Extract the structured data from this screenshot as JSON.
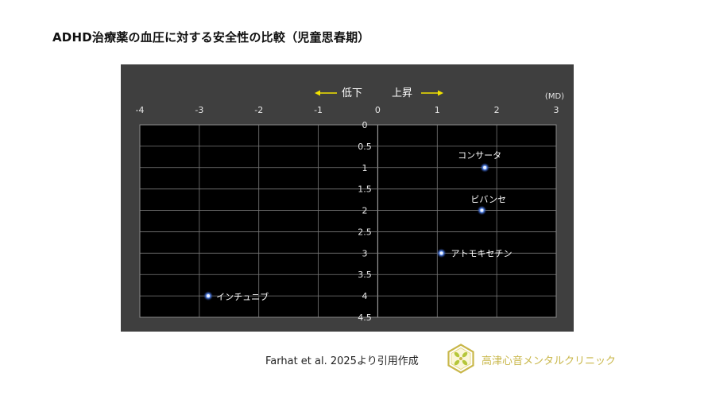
{
  "title": "ADHD治療薬の血圧に対する安全性の比較（児童思春期）",
  "citation": "Farhat et al. 2025より引用作成",
  "clinic": "高津心音メンタルクリニック",
  "colors": {
    "panel": "#3f3f3f",
    "plot": "#000000",
    "grid": "#7a7a7a",
    "arrow": "#f2e200",
    "point": "#3a6fd8",
    "clinic": "#c9b74a"
  },
  "chart_data": {
    "type": "scatter",
    "title": "",
    "xlabel": "",
    "ylabel": "",
    "unit_label": "(MD)",
    "direction_labels": {
      "left": "低下",
      "right": "上昇"
    },
    "xlim": [
      -4,
      3
    ],
    "ylim": [
      0,
      4.5
    ],
    "x_ticks": [
      "-4",
      "-3",
      "-2",
      "-1",
      "0",
      "1",
      "2",
      "3"
    ],
    "y_ticks": [
      "0",
      "0.5",
      "1",
      "1.5",
      "2",
      "2.5",
      "3",
      "3.5",
      "4",
      "4.5"
    ],
    "grid": true,
    "points": [
      {
        "label": "コンサータ",
        "x": 1.8,
        "y": 1.0
      },
      {
        "label": "ビバンセ",
        "x": 1.75,
        "y": 2.0
      },
      {
        "label": "アトモキセチン",
        "x": 1.07,
        "y": 3.0
      },
      {
        "label": "インチュニブ",
        "x": -2.85,
        "y": 4.0
      }
    ]
  }
}
